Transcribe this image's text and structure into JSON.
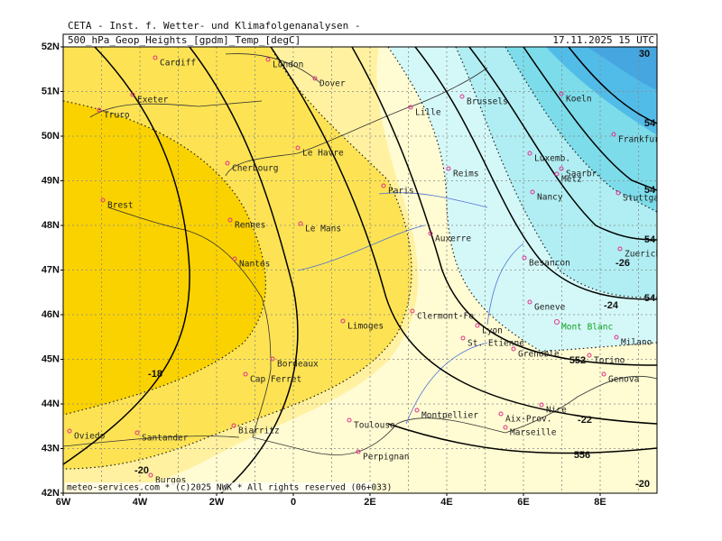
{
  "header": {
    "title": "CETA - Inst. f. Wetter- und Klimafolgenanalysen -",
    "product": "500_hPa_Geop_Heights_[gpdm]_Temp_[degC]",
    "datetime": "17.11.2025 15 UTC"
  },
  "axes": {
    "latitudes": [
      "52N",
      "51N",
      "50N",
      "49N",
      "48N",
      "47N",
      "46N",
      "45N",
      "44N",
      "43N",
      "42N"
    ],
    "longitudes": [
      "6W",
      "4W",
      "2W",
      "0",
      "2E",
      "4E",
      "6E",
      "8E"
    ]
  },
  "cities": [
    "Cardiff",
    "London",
    "Dover",
    "Exeter",
    "Truro",
    "Lille",
    "Brussels",
    "Koeln",
    "Frankfurt",
    "Le Havre",
    "Cherbourg",
    "Luxemb.",
    "Reims",
    "Metz",
    "Saarbr.",
    "Stuttgart",
    "Paris",
    "Nancy",
    "Brest",
    "Rennes",
    "Le Mans",
    "Auxerre",
    "Zuerich",
    "Nantes",
    "Besancon",
    "Geneve",
    "Limoges",
    "Clermont-Fe",
    "Lyon",
    "St. Etienne",
    "Milano",
    "Grenoble",
    "Torino",
    "Bordeaux",
    "Cap Ferret",
    "Genova",
    "Nice",
    "Aix-Prov.",
    "Toulouse",
    "Montpellier",
    "Marseille",
    "Oviedo",
    "Santander",
    "Biarritz",
    "Perpignan",
    "Burgos"
  ],
  "landmark": "Mont Blanc",
  "contour_labels": [
    "552",
    "556",
    "54",
    "54",
    "54",
    "54",
    "-18",
    "-20",
    "-20",
    "-22",
    "-24",
    "-26",
    "30"
  ],
  "footer": "meteo-services.com * (c)2025 NWK * All rights reserved (06+033)"
}
